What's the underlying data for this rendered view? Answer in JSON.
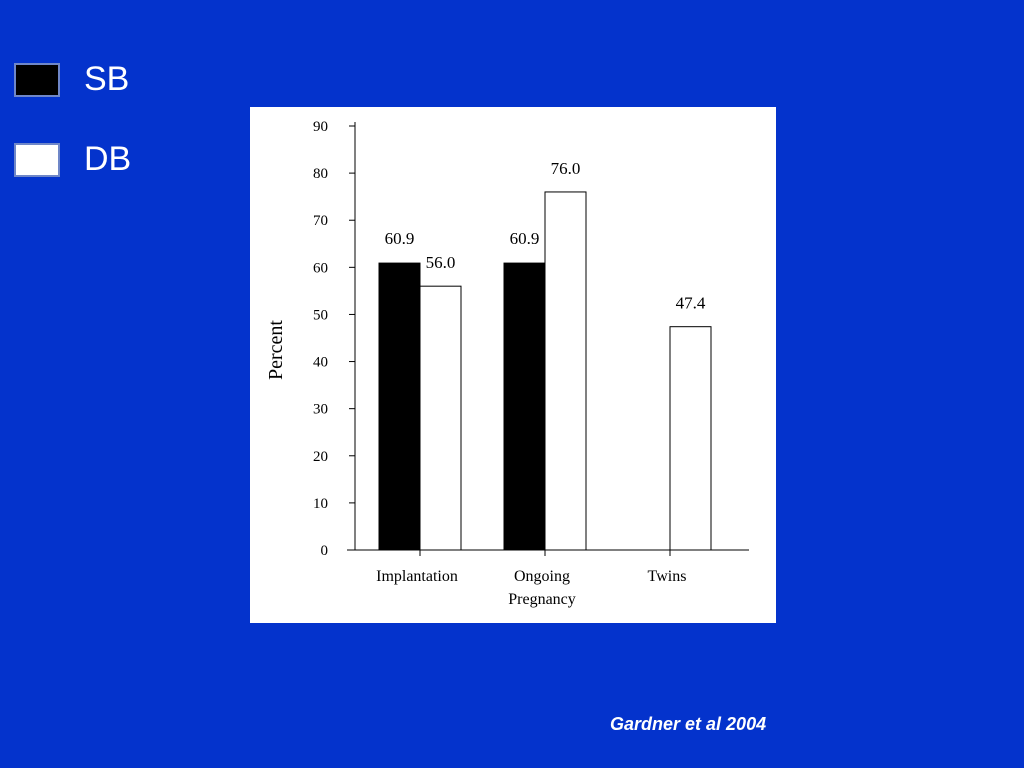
{
  "legend": {
    "items": [
      {
        "label": "SB",
        "color": "#000000"
      },
      {
        "label": "DB",
        "color": "#ffffff"
      }
    ]
  },
  "citation": "Gardner et al 2004",
  "chart_data": {
    "type": "bar",
    "ylabel": "Percent",
    "ylim": [
      0,
      90
    ],
    "yticks": [
      0,
      10,
      20,
      30,
      40,
      50,
      60,
      70,
      80,
      90
    ],
    "categories": [
      [
        "Implantation"
      ],
      [
        "Ongoing",
        "Pregnancy"
      ],
      [
        "Twins"
      ]
    ],
    "series": [
      {
        "name": "SB",
        "color": "#000000",
        "values": [
          60.9,
          60.9,
          null
        ],
        "labels": [
          "60.9",
          "60.9",
          null
        ]
      },
      {
        "name": "DB",
        "color": "#ffffff",
        "values": [
          56.0,
          76.0,
          47.4
        ],
        "labels": [
          "56.0",
          "76.0",
          "47.4"
        ]
      }
    ],
    "grid": false,
    "legend_position": "top-left"
  }
}
